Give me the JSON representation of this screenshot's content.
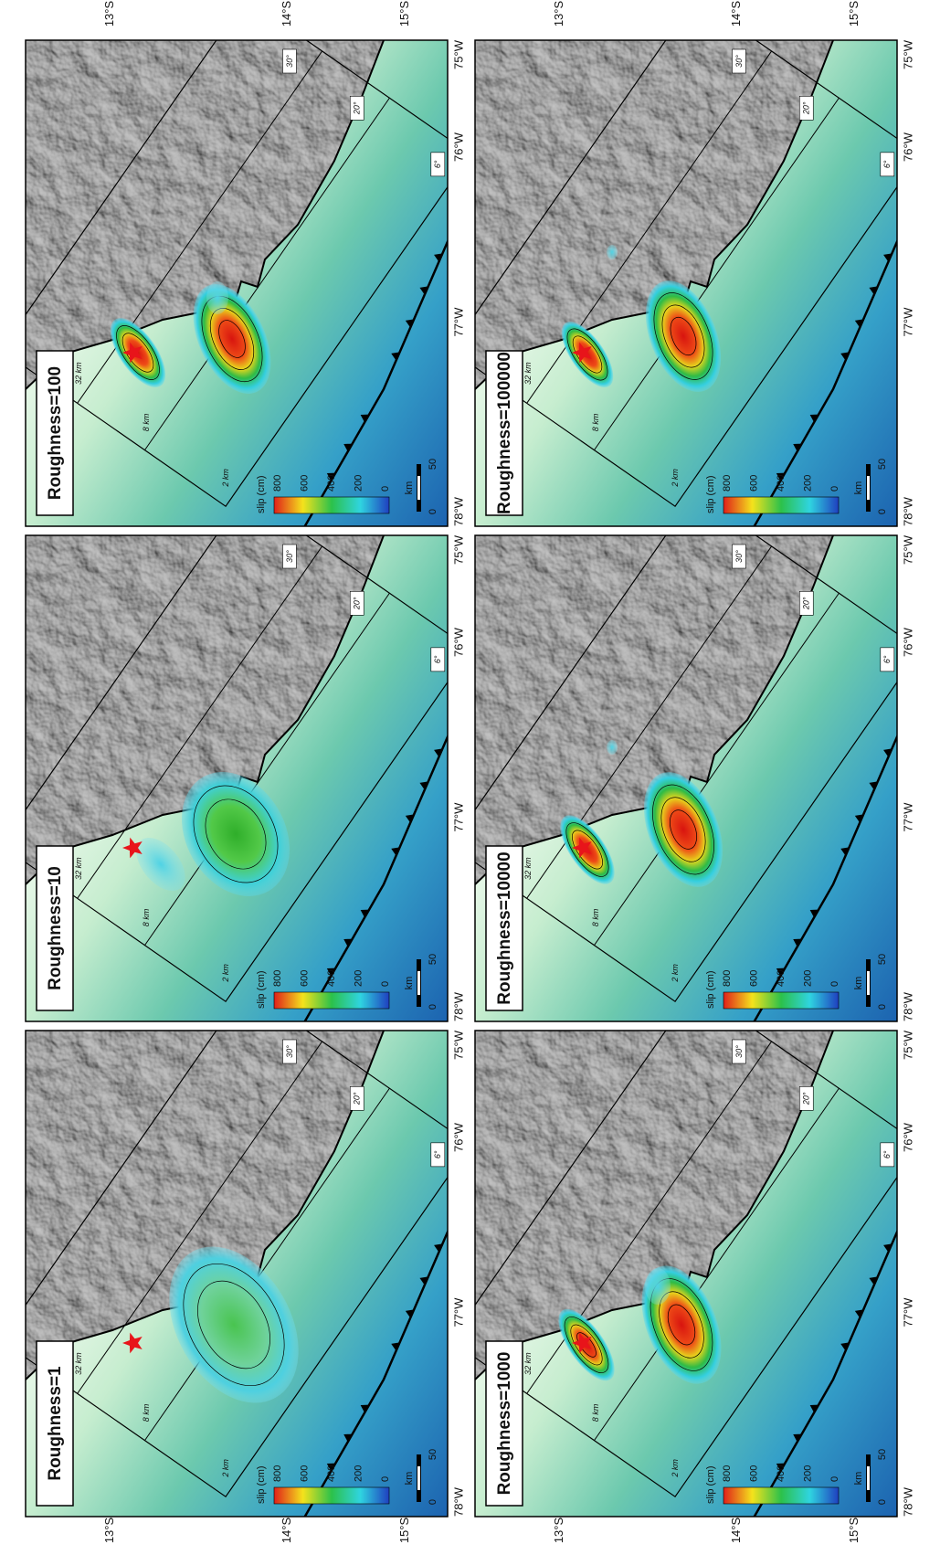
{
  "panels": [
    {
      "label": "Roughness=1"
    },
    {
      "label": "Roughness=10"
    },
    {
      "label": "Roughness=100"
    },
    {
      "label": "Roughness=1000"
    },
    {
      "label": "Roughness=10000"
    },
    {
      "label": "Roughness=100000"
    }
  ],
  "latitude_labels": [
    "13°S",
    "14°S",
    "15°S"
  ],
  "longitude_labels": [
    "78°W",
    "77°W",
    "76°W",
    "75°W"
  ],
  "colorbar": {
    "title": "slip (cm)",
    "ticks": [
      800,
      600,
      400,
      200,
      0
    ]
  },
  "scale_bar": {
    "unit": "km",
    "ticks": [
      0,
      50
    ]
  },
  "depth_labels": [
    "2 km",
    "8 km",
    "32 km"
  ],
  "dip_labels": [
    "6°",
    "20°",
    "30°"
  ]
}
